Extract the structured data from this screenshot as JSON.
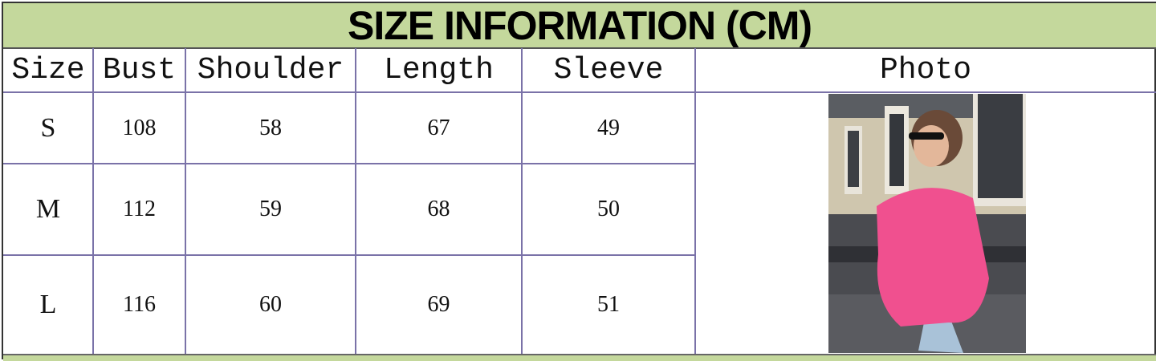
{
  "title": "SIZE INFORMATION (CM)",
  "headers": [
    "Size",
    "Bust",
    "Shoulder",
    "Length",
    "Sleeve",
    "Photo"
  ],
  "rows": [
    {
      "size": "S",
      "bust": "108",
      "shoulder": "58",
      "length": "67",
      "sleeve": "49"
    },
    {
      "size": "M",
      "bust": "112",
      "shoulder": "59",
      "length": "68",
      "sleeve": "50"
    },
    {
      "size": "L",
      "bust": "116",
      "shoulder": "60",
      "length": "69",
      "sleeve": "51"
    }
  ],
  "colors": {
    "header_band": "#c4d89c",
    "grid": "#7a72a8",
    "garment": "#f0508f"
  },
  "photo_subject": "woman in pink oversized sweatshirt"
}
